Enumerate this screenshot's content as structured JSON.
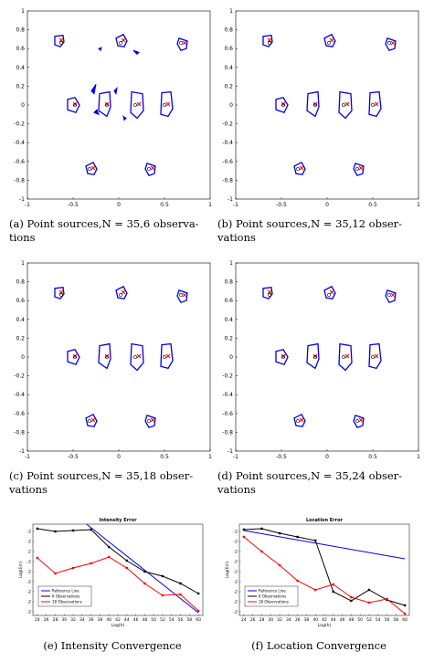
{
  "colors": {
    "contour": "#0000ee",
    "true_marker": "#ff0000",
    "estimate_marker": "#000000",
    "ref_line": "#0000ff",
    "series_black": "#000000",
    "series_red": "#ff0000"
  },
  "captions": {
    "a_line1": "(a) Point sources,N = 35,6 observa-",
    "a_line2": "tions",
    "b_line1": "(b) Point sources,N = 35,12 obser-",
    "b_line2": "vations",
    "c_line1": "(c) Point sources,N = 35,18 obser-",
    "c_line2": "vations",
    "d_line1": "(d) Point sources,N = 35,24 obser-",
    "d_line2": "vations",
    "e": "(e) Intensity Convergence",
    "f": "(f) Location Convergence"
  },
  "chart_data": [
    {
      "type": "scatter",
      "id": "a",
      "xlim": [
        -1,
        1
      ],
      "ylim": [
        -1,
        1
      ],
      "xticks": [
        "-1",
        "-0.5",
        "0",
        "0.5",
        "1"
      ],
      "yticks": [
        "1",
        "0.8",
        "0.6",
        "0.4",
        "0.2",
        "0",
        "-0.2",
        "-0.4",
        "-0.6",
        "-0.8",
        "-1"
      ],
      "true_sources": [
        [
          -0.65,
          0.68
        ],
        [
          0.03,
          0.68
        ],
        [
          0.7,
          0.65
        ],
        [
          -0.5,
          0.0
        ],
        [
          -0.15,
          0.0
        ],
        [
          0.2,
          0.0
        ],
        [
          0.52,
          0.0
        ],
        [
          -0.3,
          -0.68
        ],
        [
          0.35,
          -0.68
        ]
      ],
      "estimates": [
        [
          -0.63,
          0.66
        ],
        [
          0.02,
          0.66
        ],
        [
          0.68,
          0.66
        ],
        [
          -0.48,
          0.0
        ],
        [
          -0.13,
          0.0
        ],
        [
          0.18,
          0.0
        ],
        [
          0.5,
          0.0
        ],
        [
          -0.32,
          -0.68
        ],
        [
          0.33,
          -0.68
        ]
      ]
    },
    {
      "type": "scatter",
      "id": "b",
      "xlim": [
        -1,
        1
      ],
      "ylim": [
        -1,
        1
      ],
      "xticks": [
        "-1",
        "-0.5",
        "0",
        "0.5",
        "1"
      ],
      "yticks": [
        "1",
        "0.8",
        "0.6",
        "0.4",
        "0.2",
        "0",
        "-0.2",
        "-0.4",
        "-0.6",
        "-0.8",
        "-1"
      ],
      "true_sources": [
        [
          -0.65,
          0.68
        ],
        [
          0.03,
          0.68
        ],
        [
          0.7,
          0.65
        ],
        [
          -0.5,
          0.0
        ],
        [
          -0.15,
          0.0
        ],
        [
          0.2,
          0.0
        ],
        [
          0.52,
          0.0
        ],
        [
          -0.3,
          -0.68
        ],
        [
          0.35,
          -0.68
        ]
      ],
      "estimates": [
        [
          -0.63,
          0.66
        ],
        [
          0.02,
          0.66
        ],
        [
          0.68,
          0.66
        ],
        [
          -0.48,
          0.0
        ],
        [
          -0.13,
          0.0
        ],
        [
          0.18,
          0.0
        ],
        [
          0.5,
          0.0
        ],
        [
          -0.32,
          -0.68
        ],
        [
          0.33,
          -0.68
        ]
      ]
    },
    {
      "type": "scatter",
      "id": "c",
      "xlim": [
        -1,
        1
      ],
      "ylim": [
        -1,
        1
      ],
      "xticks": [
        "-1",
        "-0.5",
        "0",
        "0.5",
        "1"
      ],
      "yticks": [
        "1",
        "0.8",
        "0.6",
        "0.4",
        "0.2",
        "0",
        "-0.2",
        "-0.4",
        "-0.6",
        "-0.8",
        "-1"
      ],
      "true_sources": [
        [
          -0.65,
          0.68
        ],
        [
          0.03,
          0.68
        ],
        [
          0.7,
          0.65
        ],
        [
          -0.5,
          0.0
        ],
        [
          -0.15,
          0.0
        ],
        [
          0.2,
          0.0
        ],
        [
          0.52,
          0.0
        ],
        [
          -0.3,
          -0.68
        ],
        [
          0.35,
          -0.68
        ]
      ],
      "estimates": [
        [
          -0.63,
          0.66
        ],
        [
          0.02,
          0.66
        ],
        [
          0.68,
          0.66
        ],
        [
          -0.48,
          0.0
        ],
        [
          -0.13,
          0.0
        ],
        [
          0.18,
          0.0
        ],
        [
          0.5,
          0.0
        ],
        [
          -0.32,
          -0.68
        ],
        [
          0.33,
          -0.68
        ]
      ]
    },
    {
      "type": "scatter",
      "id": "d",
      "xlim": [
        -1,
        1
      ],
      "ylim": [
        -1,
        1
      ],
      "xticks": [
        "-1",
        "-0.5",
        "0",
        "0.5",
        "1"
      ],
      "yticks": [
        "1",
        "0.8",
        "0.6",
        "0.4",
        "0.2",
        "0",
        "-0.2",
        "-0.4",
        "-0.6",
        "-0.8",
        "-1"
      ],
      "true_sources": [
        [
          -0.65,
          0.68
        ],
        [
          0.03,
          0.68
        ],
        [
          0.7,
          0.65
        ],
        [
          -0.5,
          0.0
        ],
        [
          -0.15,
          0.0
        ],
        [
          0.2,
          0.0
        ],
        [
          0.52,
          0.0
        ],
        [
          -0.3,
          -0.68
        ],
        [
          0.35,
          -0.68
        ]
      ],
      "estimates": [
        [
          -0.63,
          0.66
        ],
        [
          0.02,
          0.66
        ],
        [
          0.68,
          0.66
        ],
        [
          -0.48,
          0.0
        ],
        [
          -0.13,
          0.0
        ],
        [
          0.18,
          0.0
        ],
        [
          0.5,
          0.0
        ],
        [
          -0.32,
          -0.68
        ],
        [
          0.33,
          -0.68
        ]
      ]
    },
    {
      "type": "line",
      "id": "e",
      "title": "Intensity Error",
      "xlabel": "Log(h)",
      "ylabel": "Log(Err)",
      "xlim": [
        23,
        61
      ],
      "ylim": [
        0,
        10
      ],
      "x": [
        24,
        28,
        32,
        36,
        40,
        44,
        48,
        52,
        56,
        60
      ],
      "xticks": [
        "24",
        "26",
        "28",
        "30",
        "32",
        "34",
        "36",
        "38",
        "40",
        "42",
        "44",
        "46",
        "48",
        "50",
        "52",
        "54",
        "56",
        "58",
        "60"
      ],
      "yticklabels": [
        "-2",
        "-2",
        "-2",
        "-2",
        "-2",
        "-2",
        "-2",
        "-2",
        "-2"
      ],
      "series": [
        {
          "name": "Reference Line",
          "color": "#0000ff",
          "x": [
            35,
            60
          ],
          "values": [
            10.0,
            0.3
          ]
        },
        {
          "name": "6 Observations",
          "color": "#000000",
          "x": [
            24,
            28,
            32,
            36,
            40,
            44,
            48,
            52,
            56,
            60
          ],
          "values": [
            9.5,
            9.2,
            9.3,
            9.4,
            7.5,
            6.0,
            4.8,
            4.3,
            3.5,
            2.4
          ]
        },
        {
          "name": "18 Observations",
          "color": "#ff0000",
          "x": [
            24,
            28,
            32,
            36,
            40,
            44,
            48,
            52,
            56,
            60
          ],
          "values": [
            6.3,
            4.6,
            5.2,
            5.7,
            6.4,
            5.2,
            3.5,
            2.2,
            2.3,
            0.5
          ]
        }
      ]
    },
    {
      "type": "line",
      "id": "f",
      "title": "Location Error",
      "xlabel": "Log(h)",
      "ylabel": "Log(Err)",
      "xlim": [
        23,
        61
      ],
      "ylim": [
        0,
        10
      ],
      "x": [
        24,
        28,
        32,
        36,
        40,
        44,
        48,
        52,
        56,
        60
      ],
      "xticks": [
        "24",
        "26",
        "28",
        "30",
        "32",
        "34",
        "36",
        "38",
        "40",
        "42",
        "44",
        "46",
        "48",
        "50",
        "52",
        "54",
        "56",
        "58",
        "60"
      ],
      "yticklabels": [
        "-2",
        "-2",
        "-2",
        "-2",
        "-2",
        "-2",
        "-2",
        "-2",
        "-2"
      ],
      "series": [
        {
          "name": "Reference Line",
          "color": "#0000ff",
          "x": [
            24,
            60
          ],
          "values": [
            9.3,
            6.2
          ]
        },
        {
          "name": "6 Observations",
          "color": "#000000",
          "x": [
            24,
            28,
            32,
            36,
            40,
            44,
            48,
            52,
            56,
            60
          ],
          "values": [
            9.4,
            9.5,
            9.0,
            8.6,
            8.2,
            2.6,
            1.6,
            2.8,
            1.7,
            1.1
          ]
        },
        {
          "name": "18 Observations",
          "color": "#ff0000",
          "x": [
            24,
            28,
            32,
            36,
            40,
            44,
            48,
            52,
            56,
            60
          ],
          "values": [
            8.6,
            7.0,
            5.5,
            3.8,
            2.8,
            3.4,
            2.0,
            1.4,
            1.8,
            0.2
          ]
        }
      ]
    }
  ]
}
